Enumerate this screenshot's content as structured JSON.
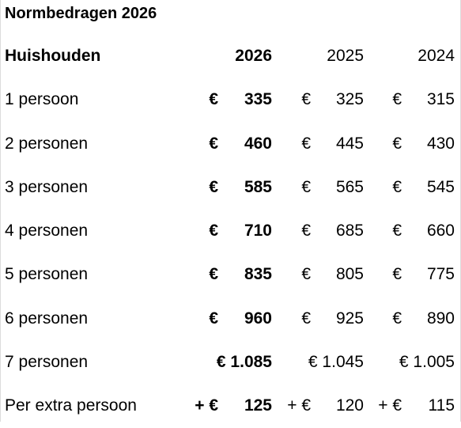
{
  "title": "Normbedragen 2026",
  "header": {
    "label": "Huishouden",
    "years": [
      "2026",
      "2025",
      "2024"
    ]
  },
  "rows": [
    {
      "label": "1 persoon",
      "cur": [
        "€",
        "€",
        "€"
      ],
      "amt": [
        "335",
        "325",
        "315"
      ]
    },
    {
      "label": "2 personen",
      "cur": [
        "€",
        "€",
        "€"
      ],
      "amt": [
        "460",
        "445",
        "430"
      ]
    },
    {
      "label": "3 personen",
      "cur": [
        "€",
        "€",
        "€"
      ],
      "amt": [
        "585",
        "565",
        "545"
      ]
    },
    {
      "label": "4 personen",
      "cur": [
        "€",
        "€",
        "€"
      ],
      "amt": [
        "710",
        "685",
        "660"
      ]
    },
    {
      "label": "5 personen",
      "cur": [
        "€",
        "€",
        "€"
      ],
      "amt": [
        "835",
        "805",
        "775"
      ]
    },
    {
      "label": "6 personen",
      "cur": [
        "€",
        "€",
        "€"
      ],
      "amt": [
        "960",
        "925",
        "890"
      ]
    }
  ],
  "row7": {
    "label": "7 personen",
    "values": [
      "€ 1.085",
      "€ 1.045",
      "€ 1.005"
    ]
  },
  "extra": {
    "label": "Per extra persoon",
    "cur": [
      "+ €",
      "+ €",
      "+ €"
    ],
    "amt": [
      "125",
      "120",
      "115"
    ]
  }
}
